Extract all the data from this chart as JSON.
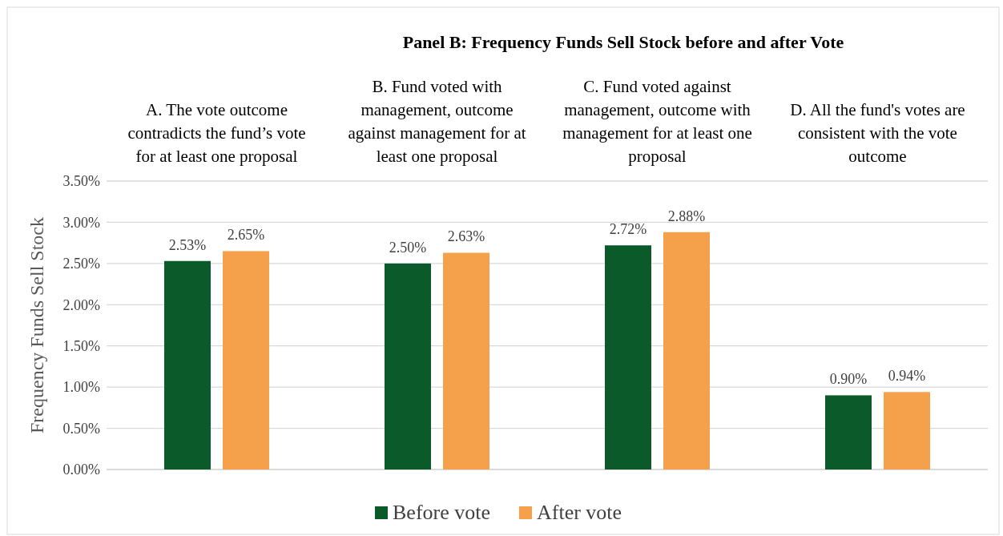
{
  "chart_data": {
    "type": "bar",
    "title": "Panel B: Frequency Funds Sell Stock before and after Vote",
    "ylabel": "Frequency Funds Sell Stock",
    "categories": [
      "A. The vote outcome contradicts the fund’s vote for at least one proposal",
      "B. Fund voted with management, outcome against management for at least one proposal",
      "C. Fund voted against management, outcome with management for at least one proposal",
      "D. All the fund's votes are consistent with the vote outcome"
    ],
    "series": [
      {
        "name": "Before vote",
        "color": "#0b5a2a",
        "values": [
          2.53,
          2.5,
          2.72,
          0.9
        ],
        "value_labels": [
          "2.53%",
          "2.50%",
          "2.72%",
          "0.90%"
        ]
      },
      {
        "name": "After vote",
        "color": "#f5a04a",
        "values": [
          2.65,
          2.63,
          2.88,
          0.94
        ],
        "value_labels": [
          "2.65%",
          "2.63%",
          "2.88%",
          "0.94%"
        ]
      }
    ],
    "ylim": [
      0,
      3.5
    ],
    "yticks": [
      {
        "value": 0,
        "label": "0.00%"
      },
      {
        "value": 0.5,
        "label": "0.50%"
      },
      {
        "value": 1,
        "label": "1.00%"
      },
      {
        "value": 1.5,
        "label": "1.50%"
      },
      {
        "value": 2,
        "label": "2.00%"
      },
      {
        "value": 2.5,
        "label": "2.50%"
      },
      {
        "value": 3,
        "label": "3.00%"
      },
      {
        "value": 3.5,
        "label": "3.50%"
      }
    ],
    "grid": "y",
    "legend": "bottom"
  }
}
